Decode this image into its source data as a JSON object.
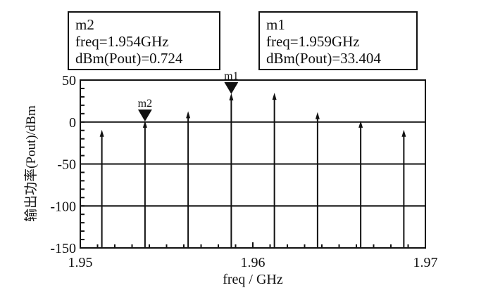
{
  "chart_data": {
    "type": "line",
    "subtype": "spectrum-stems",
    "xlabel": "freq / GHz",
    "ylabel": "输出功率(Pout)/dBm",
    "xlim": [
      1.95,
      1.97
    ],
    "ylim": [
      -150,
      50
    ],
    "xticks": [
      "1.95",
      "1.96",
      "1.97"
    ],
    "xtick_values": [
      1.95,
      1.96,
      1.97
    ],
    "yticks": [
      "50",
      "0",
      "-50",
      "-100",
      "-150"
    ],
    "ytick_values": [
      50,
      0,
      -50,
      -100,
      -150
    ],
    "grid": true,
    "x": [
      1.95125,
      1.95375,
      1.95625,
      1.95875,
      1.96125,
      1.96375,
      1.96625,
      1.96875
    ],
    "values": [
      -10,
      0.724,
      12,
      33.404,
      34,
      11,
      0.7,
      -10
    ],
    "markers": [
      {
        "name": "m2",
        "freq": 1.95375,
        "value": 0.724,
        "lines": [
          "m2",
          "freq=1.954GHz",
          "dBm(Pout)=0.724"
        ]
      },
      {
        "name": "m1",
        "freq": 1.95875,
        "value": 33.404,
        "lines": [
          "m1",
          "freq=1.959GHz",
          "dBm(Pout)=33.404"
        ]
      }
    ],
    "color": "#111111"
  }
}
